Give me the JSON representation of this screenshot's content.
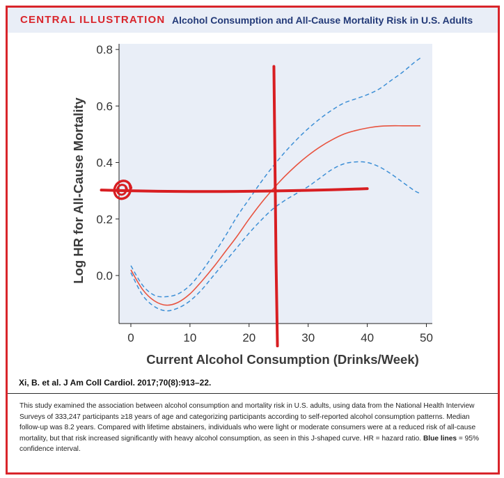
{
  "header": {
    "label": "CENTRAL ILLUSTRATION",
    "title": "Alcohol Consumption and All-Cause Mortality Risk in U.S. Adults"
  },
  "citation": "Xi, B. et al. J Am Coll Cardiol. 2017;70(8):913–22.",
  "caption": {
    "text_main": "This study examined the association between alcohol consumption and mortality risk in U.S. adults, using data from the National Health Interview Surveys of 333,247 participants ≥18 years of age and categorizing participants according to self-reported alcohol consumption patterns. Median follow-up was 8.2 years. Compared with lifetime abstainers, individuals who were light or moderate consumers were at a reduced risk of all-cause mortality, but that risk increased significantly with heavy alcohol consumption, as seen in this J-shaped curve. HR = hazard ratio. ",
    "text_bold": "Blue lines",
    "text_end": " = 95% confidence interval."
  },
  "colors": {
    "accent": "#d9252b",
    "title": "#233a78",
    "plot_bg": "#e9eef7",
    "estimate": "#e8533f",
    "ci": "#3d8fd6",
    "annotation": "#d81e22"
  },
  "chart_data": {
    "type": "line",
    "title": "",
    "xlabel": "Current Alcohol Consumption (Drinks/Week)",
    "ylabel": "Log HR for All-Cause Mortality",
    "xlim": [
      -2,
      51
    ],
    "ylim": [
      -0.17,
      0.82
    ],
    "xticks": [
      0,
      10,
      20,
      30,
      40,
      50
    ],
    "yticks": [
      0.0,
      0.2,
      0.4,
      0.6,
      0.8
    ],
    "ytick_labels": [
      "0.0",
      "0.2",
      "0.4",
      "0.6",
      "0.8"
    ],
    "series": [
      {
        "name": "estimate",
        "style": "solid",
        "x": [
          0,
          2,
          4,
          6,
          8,
          10,
          12,
          14,
          16,
          18,
          20,
          22,
          24,
          26,
          28,
          30,
          32,
          34,
          36,
          38,
          40,
          42,
          44,
          46,
          48,
          49
        ],
        "y": [
          0.02,
          -0.05,
          -0.09,
          -0.105,
          -0.095,
          -0.065,
          -0.02,
          0.03,
          0.085,
          0.14,
          0.2,
          0.255,
          0.305,
          0.35,
          0.39,
          0.425,
          0.455,
          0.48,
          0.5,
          0.513,
          0.522,
          0.528,
          0.53,
          0.53,
          0.53,
          0.53
        ]
      },
      {
        "name": "upper 95% CI",
        "style": "dashed",
        "x": [
          0,
          2,
          4,
          6,
          8,
          10,
          12,
          14,
          16,
          18,
          20,
          22,
          24,
          26,
          28,
          30,
          32,
          34,
          36,
          38,
          40,
          42,
          44,
          46,
          48,
          49
        ],
        "y": [
          0.035,
          -0.035,
          -0.07,
          -0.075,
          -0.065,
          -0.035,
          0.015,
          0.075,
          0.14,
          0.21,
          0.27,
          0.33,
          0.385,
          0.435,
          0.48,
          0.52,
          0.555,
          0.585,
          0.61,
          0.625,
          0.64,
          0.66,
          0.69,
          0.72,
          0.755,
          0.77
        ]
      },
      {
        "name": "lower 95% CI",
        "style": "dashed",
        "x": [
          0,
          2,
          4,
          6,
          8,
          10,
          12,
          14,
          16,
          18,
          20,
          22,
          24,
          26,
          28,
          30,
          32,
          34,
          36,
          38,
          40,
          42,
          44,
          46,
          48,
          49
        ],
        "y": [
          0.01,
          -0.07,
          -0.11,
          -0.125,
          -0.115,
          -0.09,
          -0.05,
          0.0,
          0.05,
          0.1,
          0.15,
          0.195,
          0.235,
          0.265,
          0.29,
          0.315,
          0.345,
          0.375,
          0.395,
          0.402,
          0.4,
          0.385,
          0.36,
          0.33,
          0.3,
          0.29
        ]
      }
    ],
    "annotations": [
      {
        "name": "marker-circle",
        "x": -1.6,
        "y": 0.3
      },
      {
        "name": "horizontal-line",
        "x": [
          -5,
          40
        ],
        "y": [
          0.3,
          0.3
        ]
      },
      {
        "name": "vertical-line",
        "x": [
          24.2,
          24.8
        ],
        "y": [
          0.74,
          -0.2
        ]
      }
    ]
  }
}
